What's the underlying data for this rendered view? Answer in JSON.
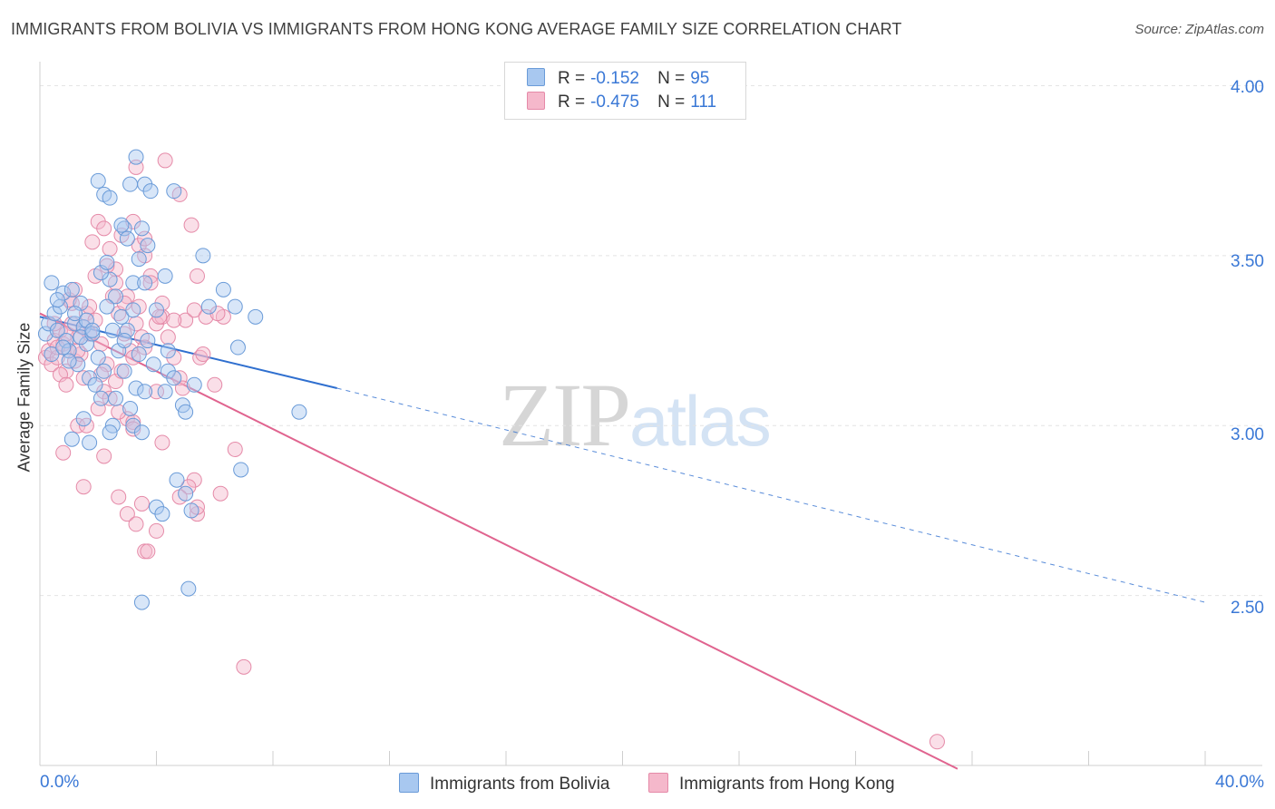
{
  "header": {
    "title": "IMMIGRANTS FROM BOLIVIA VS IMMIGRANTS FROM HONG KONG AVERAGE FAMILY SIZE CORRELATION CHART",
    "source": "Source: ZipAtlas.com"
  },
  "watermark": {
    "zip": "ZIP",
    "atlas": "atlas"
  },
  "legend": {
    "rows": [
      {
        "r_label": "R =",
        "r_value": "-0.152",
        "n_label": "N =",
        "n_value": "95",
        "color": "#a8c8f0"
      },
      {
        "r_label": "R =",
        "r_value": "-0.475",
        "n_label": "N =",
        "n_value": "111",
        "color": "#f5b8cb"
      }
    ]
  },
  "bottom_legend": {
    "bolivia": "Immigrants from Bolivia",
    "hongkong": "Immigrants from Hong Kong"
  },
  "colors": {
    "bolivia_fill": "#a8c8f0",
    "bolivia_stroke": "#6a9bd8",
    "bolivia_line": "#2f6fcf",
    "hongkong_fill": "#f5b8cb",
    "hongkong_stroke": "#e58aa8",
    "hongkong_line": "#e0648f",
    "grid": "#e4e4e4"
  },
  "chart_data": {
    "type": "scatter",
    "title": "IMMIGRANTS FROM BOLIVIA VS IMMIGRANTS FROM HONG KONG AVERAGE FAMILY SIZE CORRELATION CHART",
    "xlabel": "",
    "ylabel": "Average Family Size",
    "xlim": [
      0,
      40
    ],
    "ylim": [
      2.0,
      4.06
    ],
    "x_tick_labels": [
      "0.0%",
      "40.0%"
    ],
    "y_ticks": [
      2.5,
      3.0,
      3.5,
      4.0
    ],
    "y_tick_labels": [
      "2.50",
      "3.00",
      "3.50",
      "4.00"
    ],
    "grid": true,
    "series": [
      {
        "name": "Immigrants from Bolivia",
        "r": -0.152,
        "n": 95,
        "trend": {
          "x0": 0,
          "y0": 3.32,
          "x1_solid": 10.2,
          "y1_solid": 3.11,
          "x1": 40,
          "y1": 2.48
        },
        "points": [
          [
            0.2,
            3.27
          ],
          [
            0.3,
            3.3
          ],
          [
            0.4,
            3.21
          ],
          [
            0.5,
            3.33
          ],
          [
            0.6,
            3.28
          ],
          [
            0.7,
            3.35
          ],
          [
            0.8,
            3.39
          ],
          [
            0.9,
            3.25
          ],
          [
            1.0,
            3.22
          ],
          [
            1.1,
            3.4
          ],
          [
            1.2,
            3.3
          ],
          [
            1.3,
            3.18
          ],
          [
            1.4,
            3.36
          ],
          [
            1.5,
            3.29
          ],
          [
            1.6,
            3.24
          ],
          [
            1.7,
            3.14
          ],
          [
            0.4,
            3.42
          ],
          [
            0.6,
            3.37
          ],
          [
            0.8,
            3.23
          ],
          [
            1.0,
            3.19
          ],
          [
            1.2,
            3.33
          ],
          [
            1.4,
            3.26
          ],
          [
            1.6,
            3.31
          ],
          [
            1.8,
            3.27
          ],
          [
            2.0,
            3.2
          ],
          [
            2.2,
            3.16
          ],
          [
            2.4,
            3.43
          ],
          [
            2.6,
            3.38
          ],
          [
            2.8,
            3.32
          ],
          [
            3.0,
            3.28
          ],
          [
            3.2,
            3.34
          ],
          [
            3.4,
            3.21
          ],
          [
            1.9,
            3.12
          ],
          [
            2.1,
            3.08
          ],
          [
            2.3,
            3.35
          ],
          [
            2.5,
            3.28
          ],
          [
            2.7,
            3.22
          ],
          [
            2.9,
            3.16
          ],
          [
            3.1,
            3.05
          ],
          [
            3.3,
            3.11
          ],
          [
            1.5,
            3.02
          ],
          [
            1.7,
            2.95
          ],
          [
            2.5,
            3.0
          ],
          [
            3.2,
            3.0
          ],
          [
            1.1,
            2.96
          ],
          [
            2.4,
            2.98
          ],
          [
            3.5,
            2.98
          ],
          [
            2.1,
            3.45
          ],
          [
            2.3,
            3.48
          ],
          [
            2.0,
            3.72
          ],
          [
            2.2,
            3.68
          ],
          [
            2.4,
            3.67
          ],
          [
            2.9,
            3.58
          ],
          [
            3.1,
            3.71
          ],
          [
            3.3,
            3.79
          ],
          [
            3.6,
            3.71
          ],
          [
            3.0,
            3.55
          ],
          [
            3.4,
            3.49
          ],
          [
            3.7,
            3.53
          ],
          [
            3.8,
            3.69
          ],
          [
            3.5,
            3.58
          ],
          [
            2.8,
            3.59
          ],
          [
            3.2,
            3.42
          ],
          [
            3.6,
            3.42
          ],
          [
            4.6,
            3.69
          ],
          [
            5.6,
            3.5
          ],
          [
            4.3,
            3.44
          ],
          [
            6.3,
            3.4
          ],
          [
            5.8,
            3.35
          ],
          [
            6.7,
            3.35
          ],
          [
            7.4,
            3.32
          ],
          [
            6.8,
            3.23
          ],
          [
            4.0,
            3.34
          ],
          [
            4.4,
            3.22
          ],
          [
            3.6,
            3.1
          ],
          [
            4.3,
            3.1
          ],
          [
            4.4,
            3.16
          ],
          [
            4.6,
            3.14
          ],
          [
            4.9,
            3.06
          ],
          [
            5.3,
            3.12
          ],
          [
            5.0,
            3.04
          ],
          [
            6.9,
            2.87
          ],
          [
            8.9,
            3.04
          ],
          [
            4.7,
            2.84
          ],
          [
            5.0,
            2.8
          ],
          [
            4.0,
            2.76
          ],
          [
            5.2,
            2.75
          ],
          [
            4.2,
            2.74
          ],
          [
            3.7,
            3.25
          ],
          [
            3.9,
            3.18
          ],
          [
            1.8,
            3.28
          ],
          [
            2.6,
            3.08
          ],
          [
            5.1,
            2.52
          ],
          [
            3.5,
            2.48
          ],
          [
            2.9,
            3.25
          ]
        ]
      },
      {
        "name": "Immigrants from Hong Kong",
        "r": -0.475,
        "n": 111,
        "trend": {
          "x0": 0,
          "y0": 3.33,
          "x1": 31.5,
          "y1": 1.99
        },
        "points": [
          [
            0.2,
            3.2
          ],
          [
            0.3,
            3.22
          ],
          [
            0.4,
            3.18
          ],
          [
            0.5,
            3.25
          ],
          [
            0.6,
            3.2
          ],
          [
            0.7,
            3.28
          ],
          [
            0.8,
            3.24
          ],
          [
            0.9,
            3.16
          ],
          [
            1.0,
            3.22
          ],
          [
            1.1,
            3.3
          ],
          [
            1.2,
            3.19
          ],
          [
            1.3,
            3.26
          ],
          [
            1.4,
            3.21
          ],
          [
            1.5,
            3.14
          ],
          [
            1.6,
            3.33
          ],
          [
            1.7,
            3.27
          ],
          [
            0.5,
            3.3
          ],
          [
            0.7,
            3.15
          ],
          [
            0.9,
            3.12
          ],
          [
            1.1,
            3.36
          ],
          [
            1.3,
            3.22
          ],
          [
            1.5,
            3.29
          ],
          [
            1.7,
            3.35
          ],
          [
            1.9,
            3.31
          ],
          [
            2.1,
            3.24
          ],
          [
            2.3,
            3.18
          ],
          [
            2.5,
            3.38
          ],
          [
            2.7,
            3.33
          ],
          [
            2.9,
            3.27
          ],
          [
            3.1,
            3.22
          ],
          [
            3.3,
            3.3
          ],
          [
            3.5,
            3.26
          ],
          [
            2.0,
            3.05
          ],
          [
            2.2,
            3.1
          ],
          [
            2.4,
            3.08
          ],
          [
            2.6,
            3.13
          ],
          [
            2.8,
            3.16
          ],
          [
            3.0,
            3.02
          ],
          [
            3.2,
            3.2
          ],
          [
            3.4,
            3.35
          ],
          [
            1.8,
            3.54
          ],
          [
            2.0,
            3.6
          ],
          [
            2.2,
            3.58
          ],
          [
            2.4,
            3.52
          ],
          [
            2.6,
            3.46
          ],
          [
            2.8,
            3.56
          ],
          [
            3.0,
            3.38
          ],
          [
            3.2,
            3.6
          ],
          [
            3.4,
            3.53
          ],
          [
            3.6,
            3.5
          ],
          [
            3.8,
            3.44
          ],
          [
            4.0,
            3.3
          ],
          [
            4.2,
            3.32
          ],
          [
            4.4,
            3.26
          ],
          [
            4.6,
            3.2
          ],
          [
            4.8,
            3.14
          ],
          [
            3.3,
            3.76
          ],
          [
            4.3,
            3.78
          ],
          [
            4.8,
            3.68
          ],
          [
            5.2,
            3.59
          ],
          [
            5.4,
            3.44
          ],
          [
            5.0,
            3.31
          ],
          [
            5.3,
            3.34
          ],
          [
            4.9,
            3.11
          ],
          [
            5.5,
            3.2
          ],
          [
            5.7,
            3.32
          ],
          [
            6.0,
            3.12
          ],
          [
            6.3,
            3.32
          ],
          [
            6.1,
            3.33
          ],
          [
            5.6,
            3.21
          ],
          [
            4.2,
            3.36
          ],
          [
            4.6,
            3.31
          ],
          [
            3.6,
            3.23
          ],
          [
            4.0,
            3.1
          ],
          [
            4.1,
            3.32
          ],
          [
            3.2,
            3.01
          ],
          [
            2.2,
            2.91
          ],
          [
            1.3,
            3.0
          ],
          [
            2.1,
            3.15
          ],
          [
            0.8,
            2.92
          ],
          [
            1.6,
            3.0
          ],
          [
            1.5,
            2.82
          ],
          [
            2.7,
            3.04
          ],
          [
            3.2,
            2.99
          ],
          [
            4.2,
            2.95
          ],
          [
            5.3,
            2.84
          ],
          [
            5.1,
            2.82
          ],
          [
            5.4,
            2.74
          ],
          [
            6.2,
            2.8
          ],
          [
            6.7,
            2.93
          ],
          [
            5.4,
            2.76
          ],
          [
            3.0,
            2.74
          ],
          [
            2.7,
            2.79
          ],
          [
            3.3,
            2.71
          ],
          [
            4.0,
            2.69
          ],
          [
            3.6,
            2.63
          ],
          [
            3.7,
            2.63
          ],
          [
            3.5,
            2.77
          ],
          [
            4.8,
            2.79
          ],
          [
            7.0,
            2.29
          ],
          [
            30.8,
            2.07
          ],
          [
            2.6,
            3.42
          ],
          [
            2.9,
            3.36
          ],
          [
            3.6,
            3.55
          ],
          [
            1.9,
            3.44
          ],
          [
            2.3,
            3.47
          ],
          [
            1.0,
            3.37
          ],
          [
            1.2,
            3.4
          ],
          [
            0.6,
            3.23
          ],
          [
            0.9,
            3.27
          ],
          [
            3.8,
            3.42
          ]
        ]
      }
    ]
  }
}
